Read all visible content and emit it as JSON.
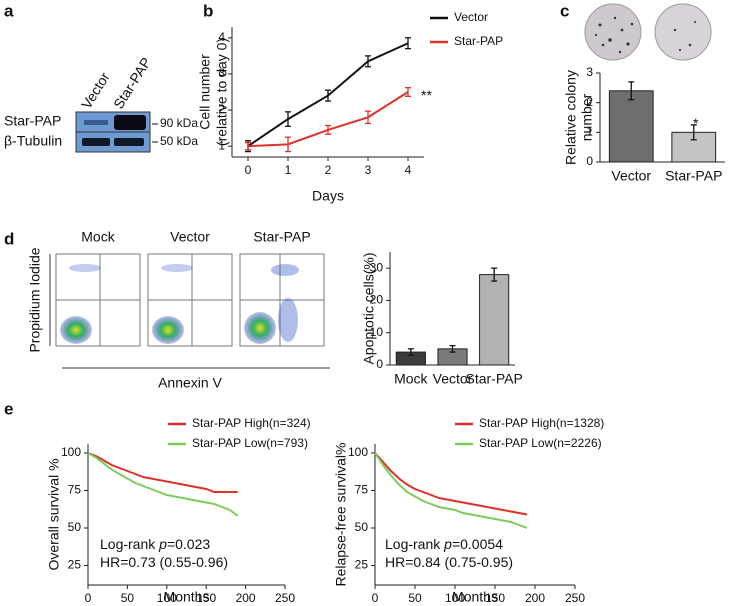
{
  "panel_labels": [
    "a",
    "b",
    "c",
    "d",
    "e"
  ],
  "blot": {
    "lanes": [
      "Vector",
      "Star-PAP"
    ],
    "rows": [
      "Star-PAP",
      "β-Tubulin"
    ],
    "markers": [
      "90 kDa",
      "50 kDa"
    ]
  },
  "flow": {
    "conditions": [
      "Mock",
      "Vector",
      "Star-PAP"
    ],
    "ylabel": "Propidium Iodide",
    "xlabel": "Annexin V"
  },
  "chart_data": [
    {
      "type": "line",
      "x": [
        0,
        1,
        2,
        3,
        4
      ],
      "xlim": [
        -0.4,
        4.4
      ],
      "xticks": [
        0,
        1,
        2,
        3,
        4
      ],
      "ylim": [
        0.7,
        4.3
      ],
      "yticks": [
        1,
        2,
        3,
        4
      ],
      "xlabel": "Days",
      "ylabel": [
        "Cell number",
        "(relative to day 0)"
      ],
      "series": [
        {
          "name": "Vector",
          "color": "#111111",
          "values": [
            1,
            1.75,
            2.4,
            3.35,
            3.85
          ],
          "errors": [
            0.15,
            0.2,
            0.15,
            0.15,
            0.15
          ]
        },
        {
          "name": "Star-PAP",
          "color": "#e0302a",
          "values": [
            1,
            1.05,
            1.45,
            1.8,
            2.5
          ],
          "errors": [
            0.1,
            0.2,
            0.12,
            0.17,
            0.12
          ]
        }
      ],
      "annotations": [
        [
          "**"
        ]
      ]
    },
    {
      "type": "bar",
      "categories": [
        "Vector",
        "Star-PAP"
      ],
      "values": [
        2.4,
        1.0
      ],
      "errors": [
        0.3,
        0.25
      ],
      "colors": [
        "#6e6e6e",
        "#c4c4c4"
      ],
      "ylim": [
        0,
        3
      ],
      "yticks": [
        0,
        1,
        2,
        3
      ],
      "ylabel": [
        "Relative colony",
        "number"
      ],
      "annotations": [
        [
          "*"
        ]
      ]
    },
    {
      "type": "bar",
      "categories": [
        "Mock",
        "Vector",
        "Star-PAP"
      ],
      "values": [
        4,
        5,
        28
      ],
      "errors": [
        1,
        1,
        2
      ],
      "colors": [
        "#3c3c3c",
        "#7a7a7a",
        "#b2b2b2"
      ],
      "ylim": [
        0,
        35
      ],
      "yticks": [
        0,
        10,
        20,
        30
      ],
      "ylabel": [
        "Apoptotic cells(%)"
      ]
    },
    {
      "type": "line",
      "x": [
        0,
        10,
        20,
        30,
        40,
        50,
        60,
        70,
        80,
        90,
        100,
        110,
        120,
        130,
        140,
        150,
        160,
        170,
        180,
        190
      ],
      "xlim": [
        0,
        250
      ],
      "xticks": [
        0,
        50,
        100,
        150,
        200,
        250
      ],
      "ylim": [
        12,
        106
      ],
      "yticks": [
        25,
        50,
        75,
        100
      ],
      "xlabel": "Months",
      "ylabel": [
        "Overall survival %"
      ],
      "series": [
        {
          "name": "Star-PAP High(n=324)",
          "color": "#e0302a",
          "values": [
            100,
            98,
            95,
            92,
            90,
            88,
            86,
            84,
            83,
            82,
            81,
            80,
            79,
            78,
            77,
            76,
            74,
            74,
            74,
            74
          ]
        },
        {
          "name": "Star-PAP Low(n=793)",
          "color": "#7ccc5a",
          "values": [
            100,
            97,
            93,
            89,
            86,
            83,
            80,
            78,
            76,
            74,
            72,
            71,
            70,
            69,
            68,
            67,
            66,
            64,
            62,
            58
          ]
        }
      ],
      "annotations": [
        [
          "Log-rank ",
          "p",
          "=0.023"
        ],
        [
          "HR=0.73 (0.55-0.96)"
        ]
      ]
    },
    {
      "type": "line",
      "x": [
        0,
        10,
        20,
        30,
        40,
        50,
        60,
        70,
        80,
        90,
        100,
        110,
        120,
        130,
        140,
        150,
        160,
        170,
        180,
        190
      ],
      "xlim": [
        0,
        250
      ],
      "xticks": [
        0,
        50,
        100,
        150,
        200,
        250
      ],
      "ylim": [
        12,
        106
      ],
      "yticks": [
        25,
        50,
        75,
        100
      ],
      "xlabel": "Months",
      "ylabel": [
        "Relapse-free survival%"
      ],
      "series": [
        {
          "name": "Star-PAP High(n=1328)",
          "color": "#e0302a",
          "values": [
            100,
            94,
            88,
            83,
            79,
            76,
            74,
            72,
            70,
            69,
            68,
            67,
            66,
            65,
            64,
            63,
            62,
            61,
            60,
            59
          ]
        },
        {
          "name": "Star-PAP Low(n=2226)",
          "color": "#7ccc5a",
          "values": [
            100,
            92,
            85,
            79,
            74,
            71,
            68,
            66,
            64,
            63,
            62,
            60,
            59,
            58,
            57,
            56,
            55,
            54,
            52,
            50
          ]
        }
      ],
      "annotations": [
        [
          "Log-rank ",
          "p",
          "=0.0054"
        ],
        [
          "HR=0.84 (0.75-0.95)"
        ]
      ]
    }
  ]
}
